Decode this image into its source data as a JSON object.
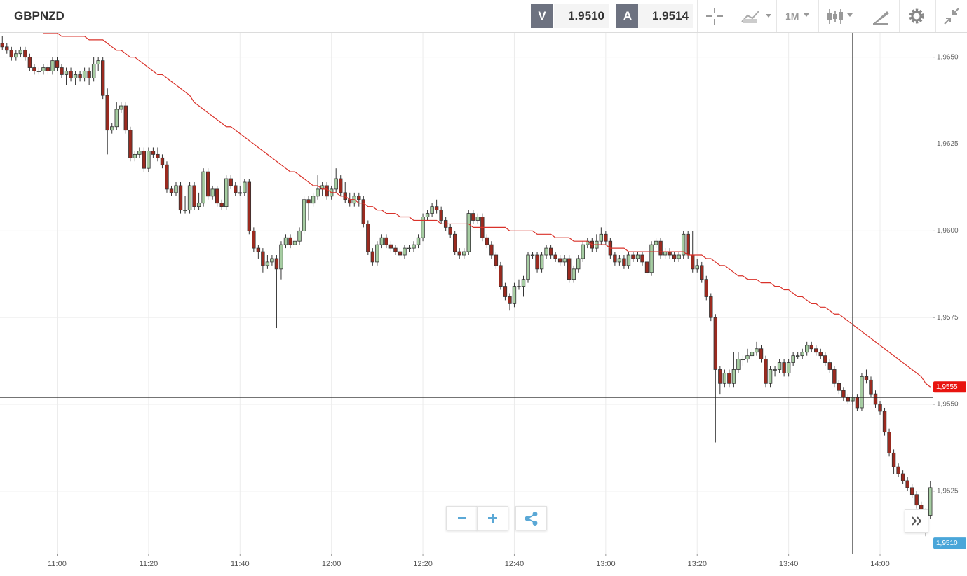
{
  "header": {
    "symbol": "GBPNZD",
    "bid_label": "V",
    "bid": "1.9510",
    "ask_label": "A",
    "ask": "1.9514",
    "timeframe": "1M"
  },
  "chart_data": {
    "type": "candlestick",
    "categories": [
      null,
      null,
      null,
      null,
      null,
      null,
      null,
      null,
      null,
      null,
      null,
      null,
      "11:00",
      null,
      null,
      null,
      null,
      null,
      null,
      null,
      null,
      null,
      null,
      null,
      null,
      null,
      null,
      null,
      null,
      null,
      null,
      null,
      "11:20",
      null,
      null,
      null,
      null,
      null,
      null,
      null,
      null,
      null,
      null,
      null,
      null,
      null,
      null,
      null,
      null,
      null,
      null,
      null,
      "11:40",
      null,
      null,
      null,
      null,
      null,
      null,
      null,
      null,
      null,
      null,
      null,
      null,
      null,
      null,
      null,
      null,
      null,
      null,
      null,
      "12:00",
      null,
      null,
      null,
      null,
      null,
      null,
      null,
      null,
      null,
      null,
      null,
      null,
      null,
      null,
      null,
      null,
      null,
      null,
      null,
      "12:20",
      null,
      null,
      null,
      null,
      null,
      null,
      null,
      null,
      null,
      null,
      null,
      null,
      null,
      null,
      null,
      null,
      null,
      null,
      null,
      "12:40",
      null,
      null,
      null,
      null,
      null,
      null,
      null,
      null,
      null,
      null,
      null,
      null,
      null,
      null,
      null,
      null,
      null,
      null,
      null,
      "13:00",
      null,
      null,
      null,
      null,
      null,
      null,
      null,
      null,
      null,
      null,
      null,
      null,
      null,
      null,
      null,
      null,
      null,
      null,
      null,
      "13:20",
      null,
      null,
      null,
      null,
      null,
      null,
      null,
      null,
      null,
      null,
      null,
      null,
      null,
      null,
      null,
      null,
      null,
      null,
      null,
      "13:40",
      null,
      null,
      null,
      null,
      null,
      null,
      null,
      null,
      null,
      null,
      null,
      null,
      null,
      null,
      null,
      null,
      null,
      null,
      null,
      "14:00",
      null,
      null,
      null,
      null,
      null,
      null,
      null,
      null,
      null,
      null,
      null
    ],
    "open": [
      1.9654,
      1.9653,
      1.9652,
      1.965,
      1.9651,
      1.9652,
      1.965,
      1.9647,
      1.9646,
      1.9646,
      1.9647,
      1.9646,
      1.9649,
      1.9647,
      1.9645,
      1.9646,
      1.9644,
      1.9645,
      1.9644,
      1.9646,
      1.9644,
      1.9648,
      1.9649,
      1.9639,
      1.9629,
      1.963,
      1.9635,
      1.9636,
      1.9629,
      1.9621,
      1.9622,
      1.9623,
      1.9618,
      1.9623,
      1.9622,
      1.9621,
      1.9619,
      1.9612,
      1.9611,
      1.9613,
      1.9606,
      1.9606,
      1.9613,
      1.9607,
      1.9608,
      1.9617,
      1.961,
      1.9612,
      1.9608,
      1.9607,
      1.9615,
      1.9613,
      1.9611,
      1.9611,
      1.9614,
      1.96,
      1.9595,
      1.9594,
      1.959,
      1.9591,
      1.9592,
      1.9589,
      1.9596,
      1.9598,
      1.9596,
      1.9597,
      1.96,
      1.9609,
      1.9608,
      1.961,
      1.9612,
      1.9613,
      1.961,
      1.9612,
      1.9615,
      1.9611,
      1.9609,
      1.9608,
      1.961,
      1.9609,
      1.9602,
      1.9594,
      1.9591,
      1.9596,
      1.9598,
      1.9596,
      1.9595,
      1.9594,
      1.9593,
      1.9595,
      1.9595,
      1.9596,
      1.9598,
      1.9604,
      1.9605,
      1.9607,
      1.9606,
      1.9603,
      1.9601,
      1.9599,
      1.9594,
      1.9593,
      1.9594,
      1.9605,
      1.9603,
      1.9604,
      1.9598,
      1.9596,
      1.9593,
      1.959,
      1.9584,
      1.9581,
      1.9579,
      1.9584,
      1.9584,
      1.9586,
      1.9593,
      1.9593,
      1.9589,
      1.9593,
      1.9595,
      1.9593,
      1.9592,
      1.9591,
      1.9592,
      1.9586,
      1.9589,
      1.9592,
      1.9596,
      1.9597,
      1.9595,
      1.9597,
      1.9599,
      1.9597,
      1.9593,
      1.9591,
      1.9592,
      1.959,
      1.9593,
      1.9592,
      1.9593,
      1.9591,
      1.9588,
      1.9596,
      1.9597,
      1.9593,
      1.9594,
      1.9593,
      1.9592,
      1.9593,
      1.9599,
      1.9593,
      1.9589,
      1.959,
      1.9586,
      1.9581,
      1.9575,
      1.956,
      1.9556,
      1.9559,
      1.9556,
      1.956,
      1.9563,
      1.9563,
      1.9564,
      1.9565,
      1.9566,
      1.9563,
      1.9556,
      1.956,
      1.956,
      1.9562,
      1.9559,
      1.9562,
      1.9564,
      1.9564,
      1.9565,
      1.9567,
      1.9566,
      1.9565,
      1.9564,
      1.9562,
      1.956,
      1.9556,
      1.9554,
      1.9552,
      1.9551,
      1.9552,
      1.9549,
      1.9558,
      1.9557,
      1.9553,
      1.955,
      1.9548,
      1.9542,
      1.9536,
      1.9532,
      1.953,
      1.9528,
      1.9526,
      1.9524,
      1.9521,
      1.9519,
      1.9518
    ],
    "high": [
      1.9656,
      1.9654,
      1.9653,
      1.9652,
      1.9653,
      1.9653,
      1.9651,
      1.9648,
      1.9647,
      1.9648,
      1.9648,
      1.965,
      1.965,
      1.9648,
      1.9647,
      1.9647,
      1.9646,
      1.9646,
      1.9647,
      1.9647,
      1.965,
      1.965,
      1.965,
      1.9641,
      1.9631,
      1.9637,
      1.9637,
      1.9637,
      1.963,
      1.9623,
      1.9624,
      1.9624,
      1.9624,
      1.9624,
      1.9624,
      1.9622,
      1.962,
      1.9613,
      1.9614,
      1.9614,
      1.961,
      1.9614,
      1.9614,
      1.9611,
      1.9618,
      1.9618,
      1.9613,
      1.9613,
      1.9609,
      1.9616,
      1.9616,
      1.9614,
      1.9613,
      1.9615,
      1.9615,
      1.9601,
      1.9596,
      1.9595,
      1.9593,
      1.9593,
      1.9593,
      1.9597,
      1.9599,
      1.9599,
      1.9599,
      1.9601,
      1.961,
      1.961,
      1.9611,
      1.9616,
      1.9614,
      1.9614,
      1.9613,
      1.9618,
      1.9616,
      1.9614,
      1.9611,
      1.9611,
      1.9611,
      1.961,
      1.9603,
      1.9595,
      1.9597,
      1.9599,
      1.9599,
      1.9597,
      1.9596,
      1.9595,
      1.9596,
      1.9596,
      1.9597,
      1.9599,
      1.9605,
      1.9606,
      1.9608,
      1.9609,
      1.9607,
      1.9604,
      1.9602,
      1.96,
      1.9595,
      1.9595,
      1.9606,
      1.9606,
      1.9605,
      1.9605,
      1.9599,
      1.9597,
      1.9594,
      1.9591,
      1.9585,
      1.9582,
      1.9585,
      1.9586,
      1.9587,
      1.9594,
      1.9594,
      1.9594,
      1.9594,
      1.9596,
      1.9596,
      1.9594,
      1.9593,
      1.9593,
      1.9593,
      1.959,
      1.9593,
      1.9597,
      1.9598,
      1.9598,
      1.9599,
      1.9601,
      1.96,
      1.9598,
      1.9594,
      1.9593,
      1.9593,
      1.9594,
      1.9594,
      1.9594,
      1.9594,
      1.9592,
      1.9597,
      1.9598,
      1.9598,
      1.9595,
      1.9595,
      1.9594,
      1.9594,
      1.96,
      1.96,
      1.96,
      1.9592,
      1.9591,
      1.9587,
      1.9582,
      1.9576,
      1.9561,
      1.956,
      1.956,
      1.9565,
      1.9565,
      1.9564,
      1.9566,
      1.9566,
      1.9568,
      1.9567,
      1.9564,
      1.9561,
      1.9561,
      1.9563,
      1.9563,
      1.9563,
      1.9565,
      1.9565,
      1.9566,
      1.9568,
      1.9568,
      1.9567,
      1.9566,
      1.9565,
      1.9563,
      1.9561,
      1.9557,
      1.9555,
      1.9553,
      1.9553,
      1.9553,
      1.9559,
      1.956,
      1.9558,
      1.9554,
      1.9551,
      1.9549,
      1.9543,
      1.9537,
      1.9533,
      1.9531,
      1.9529,
      1.9527,
      1.9525,
      1.9522,
      1.952,
      1.9528
    ],
    "low": [
      1.9652,
      1.9651,
      1.9649,
      1.9649,
      1.965,
      1.9649,
      1.9646,
      1.9645,
      1.9645,
      1.9645,
      1.9645,
      1.9645,
      1.9646,
      1.9644,
      1.9642,
      1.9643,
      1.9642,
      1.9643,
      1.9643,
      1.9642,
      1.9643,
      1.9646,
      1.9638,
      1.9622,
      1.9628,
      1.9629,
      1.9634,
      1.9628,
      1.962,
      1.962,
      1.9621,
      1.9617,
      1.9617,
      1.9621,
      1.962,
      1.9618,
      1.9611,
      1.961,
      1.961,
      1.9605,
      1.9605,
      1.9605,
      1.9606,
      1.9606,
      1.9607,
      1.9609,
      1.9609,
      1.9607,
      1.9606,
      1.9606,
      1.9612,
      1.961,
      1.961,
      1.961,
      1.9599,
      1.9594,
      1.9592,
      1.9588,
      1.9589,
      1.959,
      1.9572,
      1.9586,
      1.9595,
      1.9595,
      1.9595,
      1.9596,
      1.9599,
      1.9603,
      1.9607,
      1.9609,
      1.961,
      1.9609,
      1.9609,
      1.9611,
      1.961,
      1.9608,
      1.9607,
      1.9607,
      1.9607,
      1.9601,
      1.9593,
      1.959,
      1.959,
      1.9595,
      1.9595,
      1.9594,
      1.9593,
      1.9592,
      1.9592,
      1.9594,
      1.9594,
      1.9595,
      1.9597,
      1.9603,
      1.9604,
      1.9605,
      1.9602,
      1.96,
      1.9598,
      1.9593,
      1.9592,
      1.9592,
      1.9593,
      1.9602,
      1.9602,
      1.9597,
      1.9595,
      1.9592,
      1.9589,
      1.9583,
      1.958,
      1.9577,
      1.9578,
      1.9583,
      1.9581,
      1.9585,
      1.9592,
      1.9588,
      1.9588,
      1.9592,
      1.9592,
      1.9591,
      1.959,
      1.959,
      1.9585,
      1.9585,
      1.9588,
      1.9591,
      1.9595,
      1.9594,
      1.9594,
      1.9596,
      1.9596,
      1.9592,
      1.959,
      1.959,
      1.9589,
      1.9589,
      1.9591,
      1.9591,
      1.959,
      1.9587,
      1.9587,
      1.9595,
      1.9592,
      1.9592,
      1.9592,
      1.9591,
      1.9591,
      1.9592,
      1.9592,
      1.9588,
      1.9588,
      1.9585,
      1.958,
      1.9574,
      1.9539,
      1.9553,
      1.9555,
      1.9555,
      1.9555,
      1.9559,
      1.9561,
      1.9562,
      1.9563,
      1.9564,
      1.9562,
      1.9555,
      1.9555,
      1.9558,
      1.9559,
      1.9558,
      1.9558,
      1.9561,
      1.9563,
      1.9563,
      1.9564,
      1.9565,
      1.9564,
      1.9563,
      1.9561,
      1.9559,
      1.9555,
      1.9553,
      1.9551,
      1.955,
      1.955,
      1.9548,
      1.9548,
      1.9556,
      1.9552,
      1.9549,
      1.9547,
      1.9541,
      1.9535,
      1.953,
      1.9529,
      1.9527,
      1.9525,
      1.9523,
      1.952,
      1.9518,
      1.9512,
      1.9517
    ],
    "close": [
      1.9653,
      1.9652,
      1.965,
      1.9651,
      1.9652,
      1.965,
      1.9647,
      1.9646,
      1.9646,
      1.9647,
      1.9646,
      1.9649,
      1.9647,
      1.9645,
      1.9646,
      1.9644,
      1.9645,
      1.9644,
      1.9646,
      1.9644,
      1.9648,
      1.9649,
      1.9639,
      1.9629,
      1.963,
      1.9635,
      1.9636,
      1.9629,
      1.9621,
      1.9622,
      1.9623,
      1.9618,
      1.9623,
      1.9622,
      1.9621,
      1.9619,
      1.9612,
      1.9611,
      1.9613,
      1.9606,
      1.9606,
      1.9613,
      1.9607,
      1.9608,
      1.9617,
      1.961,
      1.9612,
      1.9608,
      1.9607,
      1.9615,
      1.9613,
      1.9611,
      1.9611,
      1.9614,
      1.96,
      1.9595,
      1.9594,
      1.959,
      1.9591,
      1.9592,
      1.9589,
      1.9596,
      1.9598,
      1.9596,
      1.9597,
      1.96,
      1.9609,
      1.9608,
      1.961,
      1.9612,
      1.9613,
      1.961,
      1.9612,
      1.9615,
      1.9611,
      1.9609,
      1.9608,
      1.961,
      1.9609,
      1.9602,
      1.9594,
      1.9591,
      1.9596,
      1.9598,
      1.9596,
      1.9595,
      1.9594,
      1.9593,
      1.9595,
      1.9595,
      1.9596,
      1.9598,
      1.9604,
      1.9605,
      1.9607,
      1.9606,
      1.9603,
      1.9601,
      1.9599,
      1.9594,
      1.9593,
      1.9594,
      1.9605,
      1.9603,
      1.9604,
      1.9598,
      1.9596,
      1.9593,
      1.959,
      1.9584,
      1.9581,
      1.9579,
      1.9584,
      1.9584,
      1.9586,
      1.9593,
      1.9593,
      1.9589,
      1.9593,
      1.9595,
      1.9593,
      1.9592,
      1.9591,
      1.9592,
      1.9586,
      1.9589,
      1.9592,
      1.9596,
      1.9597,
      1.9595,
      1.9597,
      1.9599,
      1.9597,
      1.9593,
      1.9591,
      1.9592,
      1.959,
      1.9593,
      1.9592,
      1.9593,
      1.9591,
      1.9588,
      1.9596,
      1.9597,
      1.9593,
      1.9594,
      1.9593,
      1.9592,
      1.9593,
      1.9599,
      1.9593,
      1.9589,
      1.959,
      1.9586,
      1.9581,
      1.9575,
      1.956,
      1.9556,
      1.9559,
      1.9556,
      1.956,
      1.9563,
      1.9563,
      1.9564,
      1.9565,
      1.9566,
      1.9563,
      1.9556,
      1.956,
      1.956,
      1.9562,
      1.9559,
      1.9562,
      1.9564,
      1.9564,
      1.9565,
      1.9567,
      1.9566,
      1.9565,
      1.9564,
      1.9562,
      1.956,
      1.9556,
      1.9554,
      1.9552,
      1.9551,
      1.9552,
      1.9549,
      1.9558,
      1.9557,
      1.9553,
      1.955,
      1.9548,
      1.9542,
      1.9536,
      1.9532,
      1.953,
      1.9528,
      1.9526,
      1.9524,
      1.9521,
      1.9519,
      1.9518,
      1.9526
    ],
    "ma": [
      null,
      null,
      null,
      null,
      null,
      null,
      null,
      null,
      null,
      1.9657,
      1.9657,
      1.9657,
      1.9657,
      1.9656,
      1.9656,
      1.9656,
      1.9656,
      1.9656,
      1.9656,
      1.9655,
      1.9655,
      1.9655,
      1.9655,
      1.9654,
      1.9653,
      1.9652,
      1.9652,
      1.9651,
      1.965,
      1.965,
      1.9649,
      1.9648,
      1.9647,
      1.9646,
      1.9645,
      1.9645,
      1.9644,
      1.9643,
      1.9642,
      1.9641,
      1.964,
      1.9639,
      1.9637,
      1.9636,
      1.9635,
      1.9634,
      1.9633,
      1.9632,
      1.9631,
      1.963,
      1.963,
      1.9629,
      1.9628,
      1.9627,
      1.9626,
      1.9625,
      1.9624,
      1.9623,
      1.9622,
      1.9621,
      1.962,
      1.9619,
      1.9618,
      1.9617,
      1.9617,
      1.9616,
      1.9615,
      1.9614,
      1.9613,
      1.9613,
      1.9612,
      1.9612,
      1.9611,
      1.9611,
      1.961,
      1.961,
      1.9609,
      1.9609,
      1.9608,
      1.9608,
      1.9607,
      1.9607,
      1.9606,
      1.9606,
      1.9605,
      1.9605,
      1.9605,
      1.9604,
      1.9604,
      1.9604,
      1.9603,
      1.9603,
      1.9603,
      1.9603,
      1.9603,
      1.9603,
      1.9602,
      1.9602,
      1.9602,
      1.9602,
      1.9602,
      1.9602,
      1.9602,
      1.9601,
      1.9601,
      1.9601,
      1.9601,
      1.9601,
      1.9601,
      1.9601,
      1.9601,
      1.96,
      1.96,
      1.96,
      1.96,
      1.96,
      1.96,
      1.9599,
      1.9599,
      1.9599,
      1.9599,
      1.9598,
      1.9598,
      1.9598,
      1.9598,
      1.9597,
      1.9597,
      1.9597,
      1.9597,
      1.9596,
      1.9596,
      1.9596,
      1.9596,
      1.9595,
      1.9595,
      1.9595,
      1.9595,
      1.9594,
      1.9594,
      1.9594,
      1.9594,
      1.9594,
      1.9594,
      1.9594,
      1.9594,
      1.9594,
      1.9594,
      1.9594,
      1.9594,
      1.9594,
      1.9593,
      1.9593,
      1.9593,
      1.9593,
      1.9592,
      1.9592,
      1.9591,
      1.959,
      1.959,
      1.9589,
      1.9588,
      1.9587,
      1.9587,
      1.9586,
      1.9586,
      1.9586,
      1.9585,
      1.9585,
      1.9585,
      1.9584,
      1.9584,
      1.9583,
      1.9583,
      1.9582,
      1.9581,
      1.9581,
      1.958,
      1.9579,
      1.9579,
      1.9578,
      1.9578,
      1.9577,
      1.9576,
      1.9576,
      1.9575,
      1.9574,
      1.9573,
      1.9572,
      1.9571,
      1.957,
      1.9569,
      1.9568,
      1.9567,
      1.9566,
      1.9565,
      1.9564,
      1.9563,
      1.9562,
      1.9561,
      1.956,
      1.9559,
      1.9558,
      1.9556,
      1.9555
    ],
    "up_color": "#a6cda2",
    "down_color": "#9b2a1f",
    "ma_color": "#d9322a",
    "ylim": [
      1.9507,
      1.9657
    ],
    "yticks": [
      {
        "value": 1.9525,
        "label": "1,9525"
      },
      {
        "value": 1.955,
        "label": "1,9550"
      },
      {
        "value": 1.9575,
        "label": "1,9575"
      },
      {
        "value": 1.96,
        "label": "1,9600"
      },
      {
        "value": 1.9625,
        "label": "1,9625"
      },
      {
        "value": 1.965,
        "label": "1,9650"
      }
    ],
    "grid": true,
    "price_labels": [
      {
        "value": 1.9555,
        "label": "1,9555",
        "color": "#e8140f"
      },
      {
        "value": 1.951,
        "label": "1,9510",
        "color": "#4aa6d9"
      }
    ],
    "crosshair": {
      "y": 1.9552,
      "index": 186
    }
  }
}
